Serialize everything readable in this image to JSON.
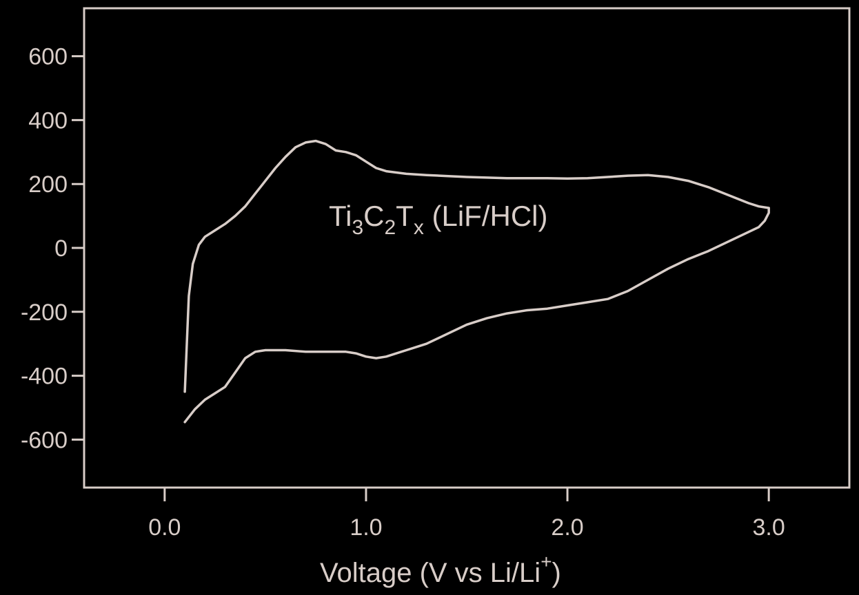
{
  "chart_data": {
    "type": "line",
    "xlabel": "Voltage (V vs Li/Li",
    "xlabel_sup": "+",
    "ylabel": "",
    "xlim": [
      -0.4,
      3.4
    ],
    "ylim": [
      -750,
      750
    ],
    "xticks": [
      0.0,
      1.0,
      2.0,
      3.0
    ],
    "xtick_labels": [
      "0.0",
      "1.0",
      "2.0",
      "3.0"
    ],
    "yticks": [
      600,
      400,
      200,
      0,
      -200,
      -400,
      -600
    ],
    "ytick_labels": [
      "600",
      "400",
      "200",
      "0",
      "-200",
      "-400",
      "-600"
    ],
    "grid": false,
    "annotation": {
      "base1": "Ti",
      "sub1": "3",
      "base2": "C",
      "sub2": "2",
      "base3": "T",
      "sub3": "x",
      "rest": " (LiF/HCl)"
    },
    "colors": {
      "background": "#000000",
      "axis": "#d8cdc8",
      "line": "#d8cdc8"
    },
    "series": [
      {
        "x": [
          0.1,
          0.11,
          0.12,
          0.14,
          0.17,
          0.2,
          0.25,
          0.3,
          0.35,
          0.4,
          0.45,
          0.5,
          0.55,
          0.6,
          0.65,
          0.7,
          0.75,
          0.8,
          0.85,
          0.9,
          0.95,
          1.0,
          1.05,
          1.1,
          1.2,
          1.3,
          1.4,
          1.5,
          1.6,
          1.7,
          1.8,
          1.9,
          2.0,
          2.1,
          2.2,
          2.3,
          2.4,
          2.5,
          2.6,
          2.7,
          2.8,
          2.9,
          2.95,
          3.0,
          3.0,
          2.98,
          2.95,
          2.9,
          2.8,
          2.7,
          2.6,
          2.5,
          2.4,
          2.3,
          2.2,
          2.1,
          2.0,
          1.9,
          1.8,
          1.7,
          1.6,
          1.5,
          1.4,
          1.3,
          1.2,
          1.1,
          1.05,
          1.0,
          0.95,
          0.9,
          0.85,
          0.8,
          0.7,
          0.6,
          0.5,
          0.45,
          0.4,
          0.35,
          0.3,
          0.25,
          0.2,
          0.15,
          0.1
        ],
        "y": [
          -450,
          -300,
          -150,
          -50,
          10,
          35,
          55,
          75,
          100,
          130,
          170,
          210,
          250,
          285,
          315,
          330,
          335,
          325,
          305,
          300,
          290,
          270,
          250,
          240,
          232,
          228,
          225,
          222,
          220,
          218,
          218,
          218,
          217,
          218,
          222,
          226,
          228,
          222,
          210,
          190,
          165,
          140,
          130,
          125,
          110,
          85,
          65,
          50,
          20,
          -10,
          -35,
          -65,
          -100,
          -135,
          -160,
          -170,
          -180,
          -190,
          -195,
          -205,
          -220,
          -240,
          -270,
          -300,
          -320,
          -340,
          -345,
          -340,
          -330,
          -325,
          -325,
          -325,
          -325,
          -320,
          -320,
          -325,
          -345,
          -390,
          -435,
          -455,
          -475,
          -505,
          -545
        ]
      }
    ]
  }
}
